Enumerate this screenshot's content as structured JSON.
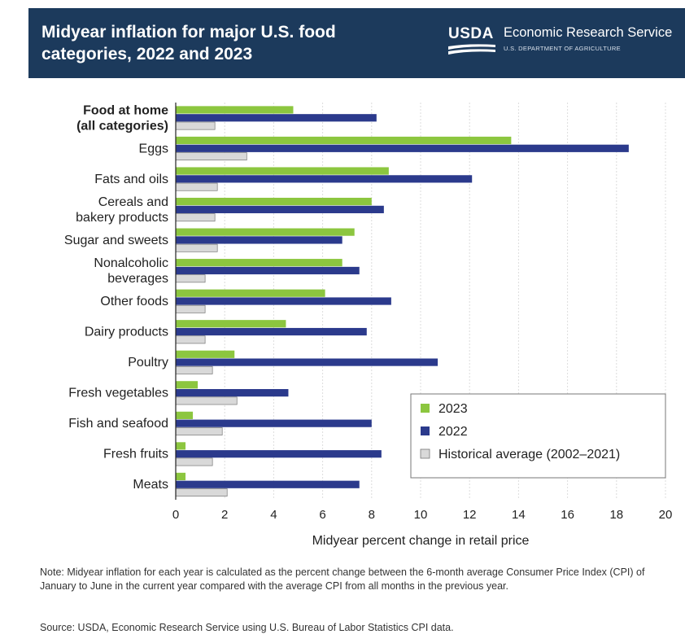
{
  "header": {
    "title_line1": "Midyear inflation for major U.S. food",
    "title_line2": "categories, 2022 and 2023",
    "logo_text": "USDA",
    "agency": "Economic Research Service",
    "department": "U.S. DEPARTMENT OF AGRICULTURE",
    "background_color": "#1c3a5c"
  },
  "chart_data": {
    "type": "bar",
    "orientation": "horizontal",
    "categories": [
      {
        "lines": [
          "Food at home",
          "(all categories)"
        ],
        "bold": true
      },
      {
        "lines": [
          "Eggs"
        ],
        "bold": false
      },
      {
        "lines": [
          "Fats and oils"
        ],
        "bold": false
      },
      {
        "lines": [
          "Cereals and",
          "bakery products"
        ],
        "bold": false
      },
      {
        "lines": [
          "Sugar and sweets"
        ],
        "bold": false
      },
      {
        "lines": [
          "Nonalcoholic",
          "beverages"
        ],
        "bold": false
      },
      {
        "lines": [
          "Other foods"
        ],
        "bold": false
      },
      {
        "lines": [
          "Dairy products"
        ],
        "bold": false
      },
      {
        "lines": [
          "Poultry"
        ],
        "bold": false
      },
      {
        "lines": [
          "Fresh vegetables"
        ],
        "bold": false
      },
      {
        "lines": [
          "Fish and seafood"
        ],
        "bold": false
      },
      {
        "lines": [
          "Fresh fruits"
        ],
        "bold": false
      },
      {
        "lines": [
          "Meats"
        ],
        "bold": false
      }
    ],
    "series": [
      {
        "name": "2023",
        "color": "#8cc63f",
        "values": [
          4.8,
          13.7,
          8.7,
          8.0,
          7.3,
          6.8,
          6.1,
          4.5,
          2.4,
          0.9,
          0.7,
          0.4,
          0.4
        ]
      },
      {
        "name": "2022",
        "color": "#2b3a8c",
        "values": [
          8.2,
          18.5,
          12.1,
          8.5,
          6.8,
          7.5,
          8.8,
          7.8,
          10.7,
          4.6,
          8.0,
          8.4,
          7.5
        ]
      },
      {
        "name": "Historical average (2002–2021)",
        "color": "#d9d9d9",
        "values": [
          1.6,
          2.9,
          1.7,
          1.6,
          1.7,
          1.2,
          1.2,
          1.2,
          1.5,
          2.5,
          1.9,
          1.5,
          2.1
        ]
      }
    ],
    "xlim": [
      0,
      20
    ],
    "xticks": [
      "0",
      "2",
      "4",
      "6",
      "8",
      "10",
      "12",
      "14",
      "16",
      "18",
      "20"
    ],
    "xlabel": "Midyear percent change in retail price",
    "ylabel": "",
    "grid": true,
    "legend_position": "bottom-right"
  },
  "footer": {
    "note": "Note: Midyear inflation for each year is calculated as the percent change between the 6-month average Consumer Price Index (CPI) of January to June in the current year compared with the average CPI from all months in the previous year.",
    "source": "Source: USDA, Economic Research Service using U.S. Bureau of Labor Statistics CPI data."
  }
}
